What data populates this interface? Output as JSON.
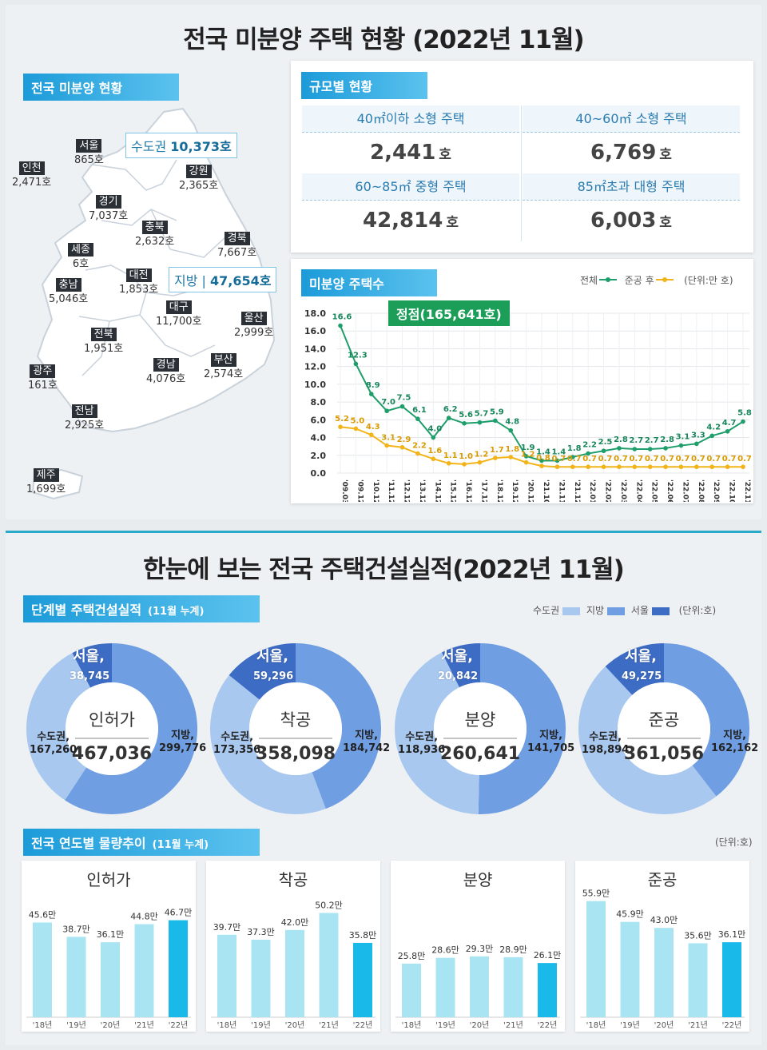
{
  "panel1": {
    "title": "전국 미분양 주택 현황 (2022년 11월)",
    "map_tag": "전국 미분양 현황",
    "regions": [
      {
        "name": "서울",
        "value": "865호"
      },
      {
        "name": "인천",
        "value": "2,471호"
      },
      {
        "name": "경기",
        "value": "7,037호"
      },
      {
        "name": "강원",
        "value": "2,365호"
      },
      {
        "name": "충북",
        "value": "2,632호"
      },
      {
        "name": "경북",
        "value": "7,667호"
      },
      {
        "name": "세종",
        "value": "6호"
      },
      {
        "name": "대전",
        "value": "1,853호"
      },
      {
        "name": "충남",
        "value": "5,046호"
      },
      {
        "name": "대구",
        "value": "11,700호"
      },
      {
        "name": "울산",
        "value": "2,999호"
      },
      {
        "name": "전북",
        "value": "1,951호"
      },
      {
        "name": "경남",
        "value": "4,076호"
      },
      {
        "name": "부산",
        "value": "2,574호"
      },
      {
        "name": "광주",
        "value": "161호"
      },
      {
        "name": "전남",
        "value": "2,925호"
      },
      {
        "name": "제주",
        "value": "1,699호"
      }
    ],
    "capital": {
      "label": "수도권",
      "value": "10,373호"
    },
    "local": {
      "label": "지방",
      "value": "47,654호"
    },
    "size_tag": "규모별 현황",
    "sizes": [
      {
        "label": "40㎡이하 소형 주택",
        "value": "2,441",
        "unit": "호"
      },
      {
        "label": "40~60㎡ 소형 주택",
        "value": "6,769",
        "unit": "호"
      },
      {
        "label": "60~85㎡ 중형 주택",
        "value": "42,814",
        "unit": "호"
      },
      {
        "label": "85㎡초과 대형 주택",
        "value": "6,003",
        "unit": "호"
      }
    ],
    "line_tag": "미분양 주택수",
    "line_legend": {
      "total": "전체",
      "after": "준공 후",
      "unit": "(단위:만 호)"
    },
    "peak_label": "정점(165,641호)"
  },
  "panel2": {
    "title": "한눈에 보는 전국 주택건설실적(2022년 11월)",
    "stage_tag": "단계별 주택건설실적",
    "stage_tag_sub": "(11월 누계)",
    "legend": {
      "capital": "수도권",
      "local": "지방",
      "seoul": "서울",
      "unit": "(단위:호)"
    },
    "annual_tag": "전국 연도별 물량추이",
    "annual_tag_sub": "(11월 누계)",
    "annual_unit": "(단위:호)"
  },
  "colors": {
    "total_line": "#1e9e6a",
    "after_line": "#f2b418",
    "capital": "#a9c8f0",
    "local": "#6f9ee3",
    "seoul": "#3d6cc4",
    "bar_light": "#a8e4f2",
    "bar_dark": "#19b9ea"
  },
  "chart_data": [
    {
      "type": "line",
      "title": "미분양 주택수",
      "ylabel": "(단위:만 호)",
      "ylim": [
        0,
        18
      ],
      "yticks": [
        "0.0",
        "2.0",
        "4.0",
        "6.0",
        "8.0",
        "10.0",
        "12.0",
        "14.0",
        "16.0",
        "18.0"
      ],
      "x": [
        "'09.03",
        "'09.12",
        "'10.12",
        "'11.12",
        "'12.12",
        "'13.12",
        "'14.12",
        "'15.12",
        "'16.12",
        "'17.12",
        "'18.12",
        "'19.12",
        "'20.12",
        "'21.10",
        "'21.11",
        "'21.12",
        "'22.01",
        "'22.02",
        "'22.03",
        "'22.04",
        "'22.05",
        "'22.06",
        "'22.07",
        "'22.08",
        "'22.09",
        "'22.10",
        "'22.11"
      ],
      "series": [
        {
          "name": "전체",
          "values": [
            16.6,
            12.3,
            8.9,
            7.0,
            7.5,
            6.1,
            4.0,
            6.2,
            5.6,
            5.7,
            5.9,
            4.8,
            1.9,
            1.4,
            1.4,
            1.8,
            2.2,
            2.5,
            2.8,
            2.7,
            2.7,
            2.8,
            3.1,
            3.3,
            4.2,
            4.7,
            5.8
          ],
          "labels": [
            "16.6",
            "12.3",
            "8.9",
            "7.0",
            "7.5",
            "6.1",
            "4.0",
            "6.2",
            "5.6",
            "5.7",
            "5.9",
            "4.8",
            "1.9",
            "1.4",
            "1.4",
            "1.8",
            "2.2",
            "2.5",
            "2.8",
            "2.7",
            "2.7",
            "2.8",
            "3.1",
            "3.3",
            "4.2",
            "4.7",
            "5.8"
          ]
        },
        {
          "name": "준공 후",
          "values": [
            5.2,
            5.0,
            4.3,
            3.1,
            2.9,
            2.2,
            1.6,
            1.1,
            1.0,
            1.2,
            1.7,
            1.8,
            1.2,
            0.8,
            0.7,
            0.7,
            0.7,
            0.7,
            0.7,
            0.7,
            0.7,
            0.7,
            0.7,
            0.7,
            0.7,
            0.7,
            0.7
          ],
          "labels": [
            "5.2",
            "5.0",
            "4.3",
            "3.1",
            "2.9",
            "2.2",
            "1.6",
            "1.1",
            "1.0",
            "1.2",
            "1.7",
            "1.8",
            "1.2",
            "0.8",
            "0.7",
            "0.7",
            "0.7",
            "0.7",
            "0.7",
            "0.7",
            "0.7",
            "0.7",
            "0.7",
            "0.7",
            "0.7",
            "0.7",
            "0.7"
          ]
        }
      ]
    },
    {
      "type": "pie",
      "donuts": [
        {
          "label": "인허가",
          "total": "467,036",
          "segments": [
            {
              "name": "서울",
              "value": 38745,
              "text": "38,745"
            },
            {
              "name": "수도권",
              "value": 167260,
              "text": "167,260"
            },
            {
              "name": "지방",
              "value": 299776,
              "text": "299,776"
            }
          ]
        },
        {
          "label": "착공",
          "total": "358,098",
          "segments": [
            {
              "name": "서울",
              "value": 59296,
              "text": "59,296"
            },
            {
              "name": "수도권",
              "value": 173356,
              "text": "173,356"
            },
            {
              "name": "지방",
              "value": 184742,
              "text": "184,742"
            }
          ]
        },
        {
          "label": "분양",
          "total": "260,641",
          "segments": [
            {
              "name": "서울",
              "value": 20842,
              "text": "20,842"
            },
            {
              "name": "수도권",
              "value": 118936,
              "text": "118,936"
            },
            {
              "name": "지방",
              "value": 141705,
              "text": "141,705"
            }
          ]
        },
        {
          "label": "준공",
          "total": "361,056",
          "segments": [
            {
              "name": "서울",
              "value": 49275,
              "text": "49,275"
            },
            {
              "name": "수도권",
              "value": 198894,
              "text": "198,894"
            },
            {
              "name": "지방",
              "value": 162162,
              "text": "162,162"
            }
          ]
        }
      ]
    },
    {
      "type": "bar",
      "categories": [
        "'18년",
        "'19년",
        "'20년",
        "'21년",
        "'22년"
      ],
      "groups": [
        {
          "title": "인허가",
          "values": [
            45.6,
            38.7,
            36.1,
            44.8,
            46.7
          ],
          "labels": [
            "45.6만",
            "38.7만",
            "36.1만",
            "44.8만",
            "46.7만"
          ]
        },
        {
          "title": "착공",
          "values": [
            39.7,
            37.3,
            42.0,
            50.2,
            35.8
          ],
          "labels": [
            "39.7만",
            "37.3만",
            "42.0만",
            "50.2만",
            "35.8만"
          ]
        },
        {
          "title": "분양",
          "values": [
            25.8,
            28.6,
            29.3,
            28.9,
            26.1
          ],
          "labels": [
            "25.8만",
            "28.6만",
            "29.3만",
            "28.9만",
            "26.1만"
          ]
        },
        {
          "title": "준공",
          "values": [
            55.9,
            45.9,
            43.0,
            35.6,
            36.1
          ],
          "labels": [
            "55.9만",
            "45.9만",
            "43.0만",
            "35.6만",
            "36.1만"
          ]
        }
      ]
    }
  ]
}
